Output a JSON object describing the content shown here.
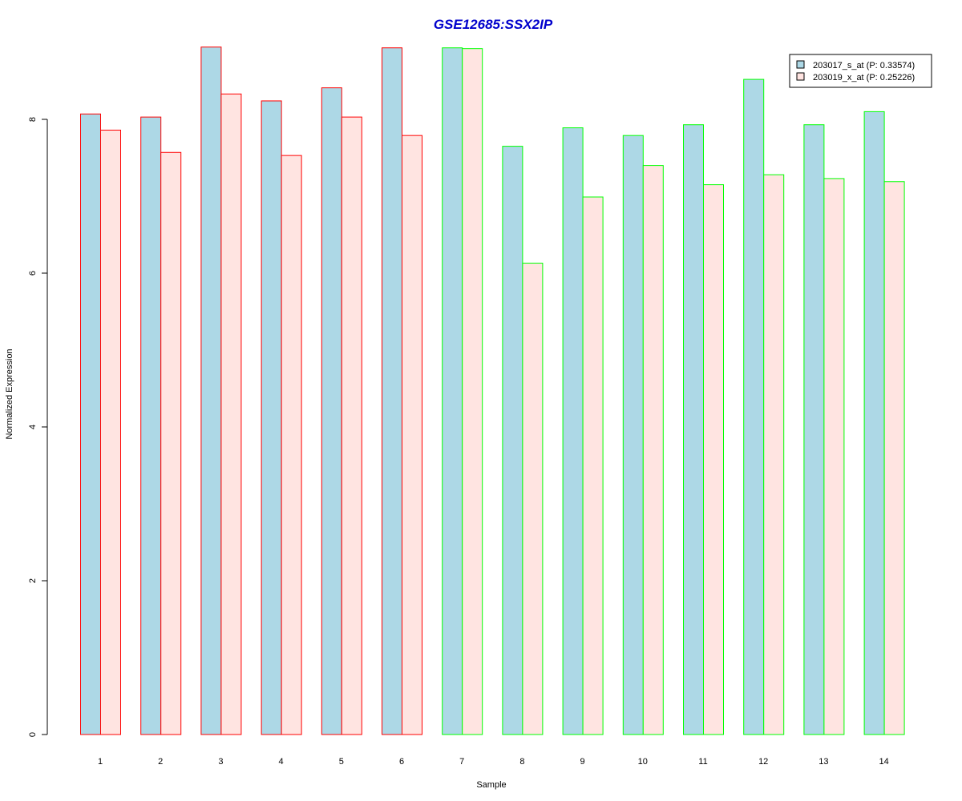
{
  "chart_data": {
    "type": "bar",
    "title": "GSE12685:SSX2IP",
    "title_color": "#0000CC",
    "xlabel": "Sample",
    "ylabel": "Normalized Expression",
    "ylim": [
      0,
      9.45
    ],
    "yticks": [
      0,
      2,
      4,
      6,
      8
    ],
    "ytick_labels": [
      "0",
      "2",
      "4",
      "6",
      "8"
    ],
    "categories": [
      "1",
      "2",
      "3",
      "4",
      "5",
      "6",
      "7",
      "8",
      "9",
      "10",
      "11",
      "12",
      "13",
      "14"
    ],
    "group_border_colors": [
      "#FF0000",
      "#FF0000",
      "#FF0000",
      "#FF0000",
      "#FF0000",
      "#FF0000",
      "#00FF00",
      "#00FF00",
      "#00FF00",
      "#00FF00",
      "#00FF00",
      "#00FF00",
      "#00FF00",
      "#00FF00"
    ],
    "series": [
      {
        "name": "203017_s_at (P: 0.33574)",
        "color": "#ADD8E6",
        "values": [
          8.07,
          8.03,
          8.94,
          8.24,
          8.41,
          8.93,
          8.93,
          7.65,
          7.89,
          7.79,
          7.93,
          8.52,
          7.93,
          8.1
        ]
      },
      {
        "name": "203019_x_at (P: 0.25226)",
        "color": "#FFE4E1",
        "values": [
          7.86,
          7.57,
          8.33,
          7.53,
          8.03,
          7.79,
          8.92,
          6.13,
          6.99,
          7.4,
          7.15,
          7.28,
          7.23,
          7.19
        ]
      }
    ],
    "legend_position": "top-right",
    "grid": false
  }
}
